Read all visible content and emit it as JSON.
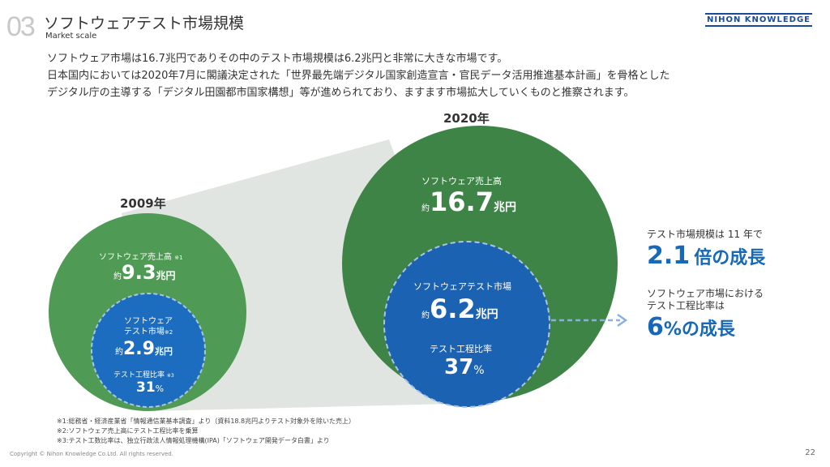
{
  "header": {
    "number": "03",
    "title": "ソフトウェアテスト市場規模",
    "subtitle": "Market scale",
    "logo": "NIHON KNOWLEDGE"
  },
  "intro": [
    "ソフトウェア市場は16.7兆円でありその中のテスト市場規模は6.2兆円と非常に大きな市場です。",
    "日本国内においては2020年7月に閣議決定された「世界最先端デジタル国家創造宣言・官民データ活用推進基本計画」を骨格とした",
    "デジタル庁の主導する「デジタル田園都市国家構想」等が進められており、ますます市場拡大していくものと推察されます。"
  ],
  "y2009": {
    "year": "2009年",
    "sales_label": "ソフトウェア売上高",
    "sales_note": "※1",
    "approx": "約",
    "sales_value": "9.3",
    "unit": "兆円",
    "test_label1": "ソフトウェア",
    "test_label2": "テスト市場",
    "test_note": "※2",
    "test_value": "2.9",
    "ratio_label": "テスト工程比率",
    "ratio_note": "※3",
    "ratio_value": "31",
    "pct": "%"
  },
  "y2020": {
    "year": "2020年",
    "sales_label": "ソフトウェア売上高",
    "approx": "約",
    "sales_value": "16.7",
    "unit": "兆円",
    "test_label": "ソフトウェアテスト市場",
    "test_value": "6.2",
    "ratio_label": "テスト工程比率",
    "ratio_value": "37",
    "pct": "%"
  },
  "summary": {
    "line1": "テスト市場規模は 11 年で",
    "growth1_value": "2.1",
    "growth1_text": "倍の成長",
    "line2a": "ソフトウェア市場における",
    "line2b": "テスト工程比率は",
    "growth2_value": "6",
    "growth2_text": "%の成長"
  },
  "footnotes": [
    "※1:総務省・経済産業省「情報通信業基本調査」より（資料18.8兆円よりテスト対象外を除いた売上）",
    "※2:ソフトウェア売上高にテスト工程比率を乗算",
    "※3:テスト工数比率は、独立行政法人情報処理機構(IPA)「ソフトウェア開発データ白書」より"
  ],
  "footer": {
    "copyright": "Copyright © Nihon Knowledge Co.Ltd. All rights reserved.",
    "page": "22"
  }
}
